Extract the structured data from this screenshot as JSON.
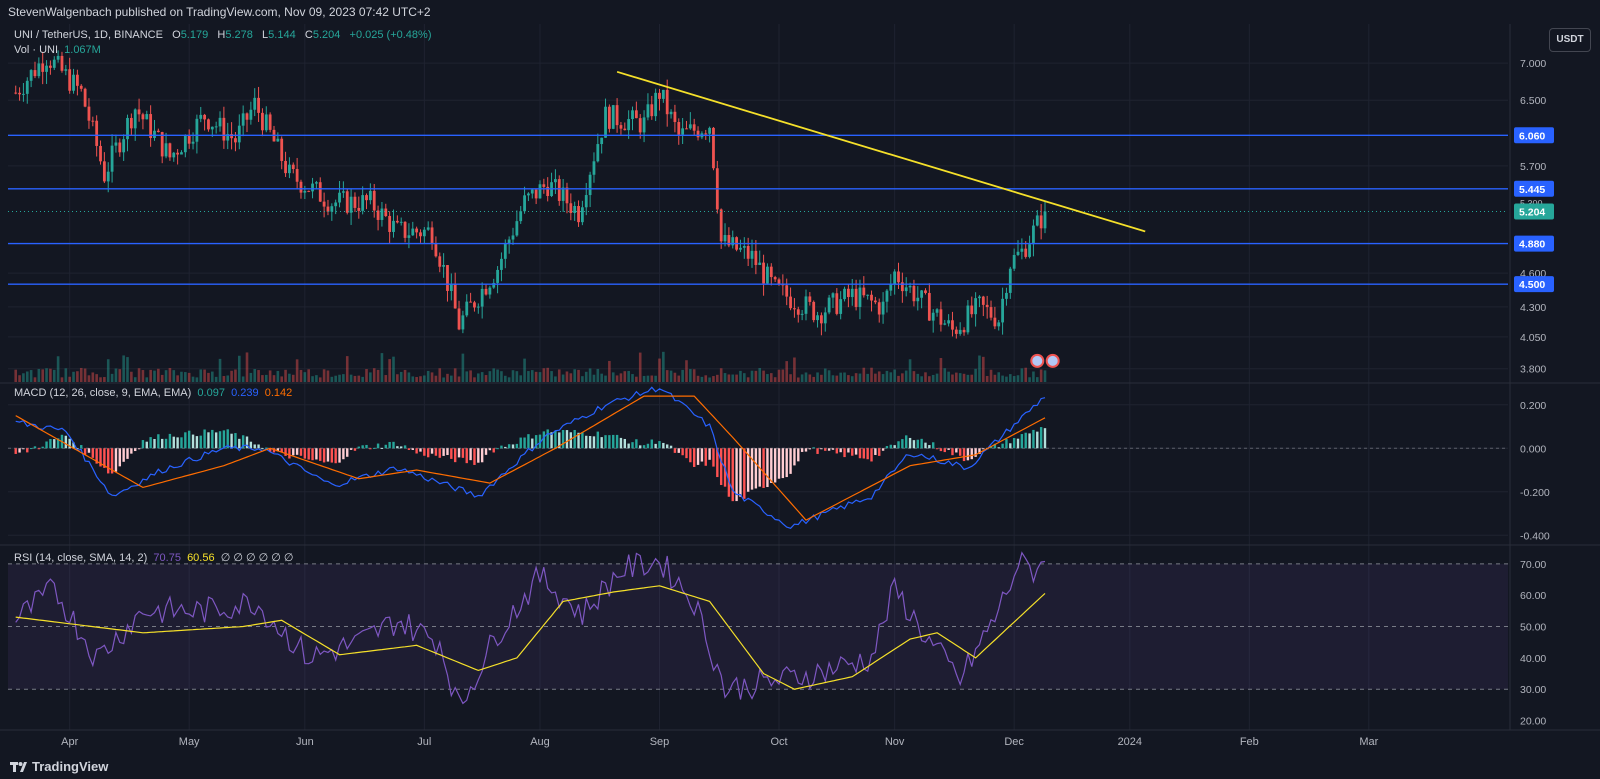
{
  "header": {
    "published": "StevenWalgenbach published on TradingView.com, Nov 09, 2023 07:42 UTC+2"
  },
  "legend": {
    "symbol": "UNI / TetherUS, 1D, BINANCE",
    "o_label": "O",
    "o": "5.179",
    "h_label": "H",
    "h": "5.278",
    "l_label": "L",
    "l": "5.144",
    "c_label": "C",
    "c": "5.204",
    "change": "+0.025 (+0.48%)",
    "vol_label": "Vol · UNI",
    "vol": "1.067M",
    "macd_label": "MACD (12, 26, close, 9, EMA, EMA)",
    "macd_hist": "0.097",
    "macd_line": "0.239",
    "macd_signal": "0.142",
    "rsi_label": "RSI (14, close, SMA, 14, 2)",
    "rsi_value": "70.75",
    "rsi_ma": "60.56",
    "rsi_extra": "∅ ∅ ∅ ∅ ∅ ∅"
  },
  "currency_button": "USDT",
  "footer": {
    "brand": "TradingView"
  },
  "colors": {
    "up": "#26a69a",
    "down": "#ef5350",
    "level": "#2962ff",
    "trendline": "#f5e02a",
    "macd_line": "#2962ff",
    "signal_line": "#ff6d00",
    "rsi_line": "#7e57c2",
    "rsi_ma": "#f5e02a"
  },
  "chart_data": [
    {
      "type": "candlestick",
      "title": "UNI / TetherUS, 1D, BINANCE",
      "x_axis_labels": [
        "Mar",
        "Apr",
        "May",
        "Jun",
        "Jul",
        "Aug",
        "Sep",
        "Oct",
        "Nov",
        "Dec",
        "2024",
        "Feb",
        "Mar"
      ],
      "y_ticks": [
        3.8,
        4.05,
        4.3,
        4.6,
        5.7,
        6.5,
        7.0
      ],
      "y_tick_labels": [
        "3.800",
        "4.050",
        "4.300",
        "4.600",
        "5.700",
        "6.500",
        "7.000"
      ],
      "y_range": [
        3.73,
        7.45
      ],
      "log_scale": true,
      "grid": true,
      "horizontal_levels": [
        {
          "value": 6.06,
          "label": "6.060"
        },
        {
          "value": 5.445,
          "label": "5.445"
        },
        {
          "value": 4.88,
          "label": "4.880"
        },
        {
          "value": 4.5,
          "label": "4.500"
        }
      ],
      "last_price": {
        "value": 5.204,
        "label": "5.204"
      },
      "secondary_price": {
        "value": 5.3,
        "label": "5.300"
      },
      "trendline": {
        "from": {
          "date": "2023-07-21",
          "value": 6.88
        },
        "to": {
          "date": "2023-12-05",
          "value": 5.0
        }
      },
      "anchors": [
        {
          "date": "2023-02-15",
          "value": 6.6
        },
        {
          "date": "2023-02-23",
          "value": 7.1
        },
        {
          "date": "2023-03-04",
          "value": 6.6
        },
        {
          "date": "2023-03-10",
          "value": 5.6
        },
        {
          "date": "2023-03-18",
          "value": 6.4
        },
        {
          "date": "2023-03-27",
          "value": 5.8
        },
        {
          "date": "2023-04-05",
          "value": 6.3
        },
        {
          "date": "2023-04-13",
          "value": 6.0
        },
        {
          "date": "2023-04-18",
          "value": 6.45
        },
        {
          "date": "2023-04-27",
          "value": 5.6
        },
        {
          "date": "2023-05-08",
          "value": 5.3
        },
        {
          "date": "2023-05-18",
          "value": 5.3
        },
        {
          "date": "2023-05-25",
          "value": 5.0
        },
        {
          "date": "2023-06-03",
          "value": 5.0
        },
        {
          "date": "2023-06-10",
          "value": 4.15
        },
        {
          "date": "2023-06-20",
          "value": 4.65
        },
        {
          "date": "2023-06-27",
          "value": 5.3
        },
        {
          "date": "2023-07-03",
          "value": 5.5
        },
        {
          "date": "2023-07-11",
          "value": 5.2
        },
        {
          "date": "2023-07-18",
          "value": 6.3
        },
        {
          "date": "2023-07-28",
          "value": 6.2
        },
        {
          "date": "2023-08-01",
          "value": 6.6
        },
        {
          "date": "2023-08-06",
          "value": 6.05
        },
        {
          "date": "2023-08-14",
          "value": 6.2
        },
        {
          "date": "2023-08-17",
          "value": 4.9
        },
        {
          "date": "2023-08-25",
          "value": 4.75
        },
        {
          "date": "2023-08-31",
          "value": 4.45
        },
        {
          "date": "2023-09-11",
          "value": 4.25
        },
        {
          "date": "2023-09-20",
          "value": 4.4
        },
        {
          "date": "2023-09-28",
          "value": 4.3
        },
        {
          "date": "2023-10-01",
          "value": 4.6
        },
        {
          "date": "2023-10-08",
          "value": 4.35
        },
        {
          "date": "2023-10-16",
          "value": 4.1
        },
        {
          "date": "2023-10-23",
          "value": 4.3
        },
        {
          "date": "2023-10-28",
          "value": 4.2
        },
        {
          "date": "2023-10-31",
          "value": 4.7
        },
        {
          "date": "2023-11-03",
          "value": 4.8
        },
        {
          "date": "2023-11-06",
          "value": 5.0
        },
        {
          "date": "2023-11-09",
          "value": 5.2
        }
      ]
    },
    {
      "type": "bar",
      "title": "Vol · UNI",
      "last_value": "1.067M"
    },
    {
      "type": "line",
      "title": "MACD (12, 26, close, 9, EMA, EMA)",
      "y_ticks": [
        0.2,
        0.0,
        -0.2,
        -0.4
      ],
      "y_tick_labels": [
        "0.200",
        "0.000",
        "-0.200",
        "-0.400"
      ],
      "y_range": [
        -0.44,
        0.3
      ],
      "series": [
        {
          "name": "MACD",
          "anchors": [
            {
              "date": "2023-02-15",
              "value": 0.12
            },
            {
              "date": "2023-02-28",
              "value": 0.08
            },
            {
              "date": "2023-03-12",
              "value": -0.22
            },
            {
              "date": "2023-03-25",
              "value": -0.1
            },
            {
              "date": "2023-04-10",
              "value": 0.0
            },
            {
              "date": "2023-04-20",
              "value": 0.0
            },
            {
              "date": "2023-05-08",
              "value": -0.17
            },
            {
              "date": "2023-05-25",
              "value": -0.09
            },
            {
              "date": "2023-06-15",
              "value": -0.22
            },
            {
              "date": "2023-07-02",
              "value": 0.05
            },
            {
              "date": "2023-07-18",
              "value": 0.2
            },
            {
              "date": "2023-08-01",
              "value": 0.28
            },
            {
              "date": "2023-08-14",
              "value": 0.1
            },
            {
              "date": "2023-08-20",
              "value": -0.2
            },
            {
              "date": "2023-09-04",
              "value": -0.36
            },
            {
              "date": "2023-09-25",
              "value": -0.22
            },
            {
              "date": "2023-10-05",
              "value": -0.02
            },
            {
              "date": "2023-10-20",
              "value": -0.09
            },
            {
              "date": "2023-11-09",
              "value": 0.24
            }
          ]
        },
        {
          "name": "Signal",
          "anchors": [
            {
              "date": "2023-02-15",
              "value": 0.15
            },
            {
              "date": "2023-03-20",
              "value": -0.18
            },
            {
              "date": "2023-04-10",
              "value": -0.08
            },
            {
              "date": "2023-04-22",
              "value": 0.0
            },
            {
              "date": "2023-05-15",
              "value": -0.14
            },
            {
              "date": "2023-05-30",
              "value": -0.1
            },
            {
              "date": "2023-06-18",
              "value": -0.16
            },
            {
              "date": "2023-07-05",
              "value": 0.0
            },
            {
              "date": "2023-07-28",
              "value": 0.24
            },
            {
              "date": "2023-08-10",
              "value": 0.24
            },
            {
              "date": "2023-08-20",
              "value": 0.05
            },
            {
              "date": "2023-09-08",
              "value": -0.33
            },
            {
              "date": "2023-10-05",
              "value": -0.08
            },
            {
              "date": "2023-10-22",
              "value": -0.03
            },
            {
              "date": "2023-11-09",
              "value": 0.14
            }
          ]
        }
      ]
    },
    {
      "type": "line",
      "title": "RSI (14, close, SMA, 14, 2)",
      "y_ticks": [
        70,
        60,
        50,
        40,
        30,
        20
      ],
      "y_tick_labels": [
        "70.00",
        "60.00",
        "50.00",
        "40.00",
        "30.00",
        "20.00"
      ],
      "y_range": [
        17,
        76
      ],
      "bands": [
        70,
        50,
        30
      ],
      "series": [
        {
          "name": "RSI",
          "anchors": [
            {
              "date": "2023-02-15",
              "value": 52
            },
            {
              "date": "2023-02-25",
              "value": 62
            },
            {
              "date": "2023-03-08",
              "value": 40
            },
            {
              "date": "2023-03-20",
              "value": 55
            },
            {
              "date": "2023-04-05",
              "value": 55
            },
            {
              "date": "2023-04-18",
              "value": 58
            },
            {
              "date": "2023-05-02",
              "value": 40
            },
            {
              "date": "2023-05-15",
              "value": 45
            },
            {
              "date": "2023-05-25",
              "value": 52
            },
            {
              "date": "2023-06-05",
              "value": 45
            },
            {
              "date": "2023-06-10",
              "value": 24
            },
            {
              "date": "2023-06-20",
              "value": 48
            },
            {
              "date": "2023-07-01",
              "value": 66
            },
            {
              "date": "2023-07-12",
              "value": 54
            },
            {
              "date": "2023-07-22",
              "value": 68
            },
            {
              "date": "2023-08-01",
              "value": 71
            },
            {
              "date": "2023-08-10",
              "value": 58
            },
            {
              "date": "2023-08-18",
              "value": 30
            },
            {
              "date": "2023-08-28",
              "value": 32
            },
            {
              "date": "2023-09-10",
              "value": 35
            },
            {
              "date": "2023-09-25",
              "value": 40
            },
            {
              "date": "2023-10-01",
              "value": 62
            },
            {
              "date": "2023-10-10",
              "value": 45
            },
            {
              "date": "2023-10-18",
              "value": 33
            },
            {
              "date": "2023-10-28",
              "value": 55
            },
            {
              "date": "2023-11-02",
              "value": 70
            },
            {
              "date": "2023-11-06",
              "value": 68
            },
            {
              "date": "2023-11-09",
              "value": 70.75
            }
          ]
        },
        {
          "name": "RSI MA",
          "anchors": [
            {
              "date": "2023-02-15",
              "value": 53
            },
            {
              "date": "2023-03-20",
              "value": 48
            },
            {
              "date": "2023-04-15",
              "value": 50
            },
            {
              "date": "2023-04-25",
              "value": 52
            },
            {
              "date": "2023-05-10",
              "value": 41
            },
            {
              "date": "2023-05-30",
              "value": 44
            },
            {
              "date": "2023-06-15",
              "value": 36
            },
            {
              "date": "2023-06-25",
              "value": 40
            },
            {
              "date": "2023-07-07",
              "value": 58
            },
            {
              "date": "2023-07-20",
              "value": 61
            },
            {
              "date": "2023-08-01",
              "value": 63
            },
            {
              "date": "2023-08-14",
              "value": 58
            },
            {
              "date": "2023-08-28",
              "value": 35
            },
            {
              "date": "2023-09-05",
              "value": 30
            },
            {
              "date": "2023-09-20",
              "value": 34
            },
            {
              "date": "2023-10-05",
              "value": 46
            },
            {
              "date": "2023-10-12",
              "value": 48
            },
            {
              "date": "2023-10-22",
              "value": 40
            },
            {
              "date": "2023-11-09",
              "value": 60.56
            }
          ]
        }
      ]
    }
  ]
}
